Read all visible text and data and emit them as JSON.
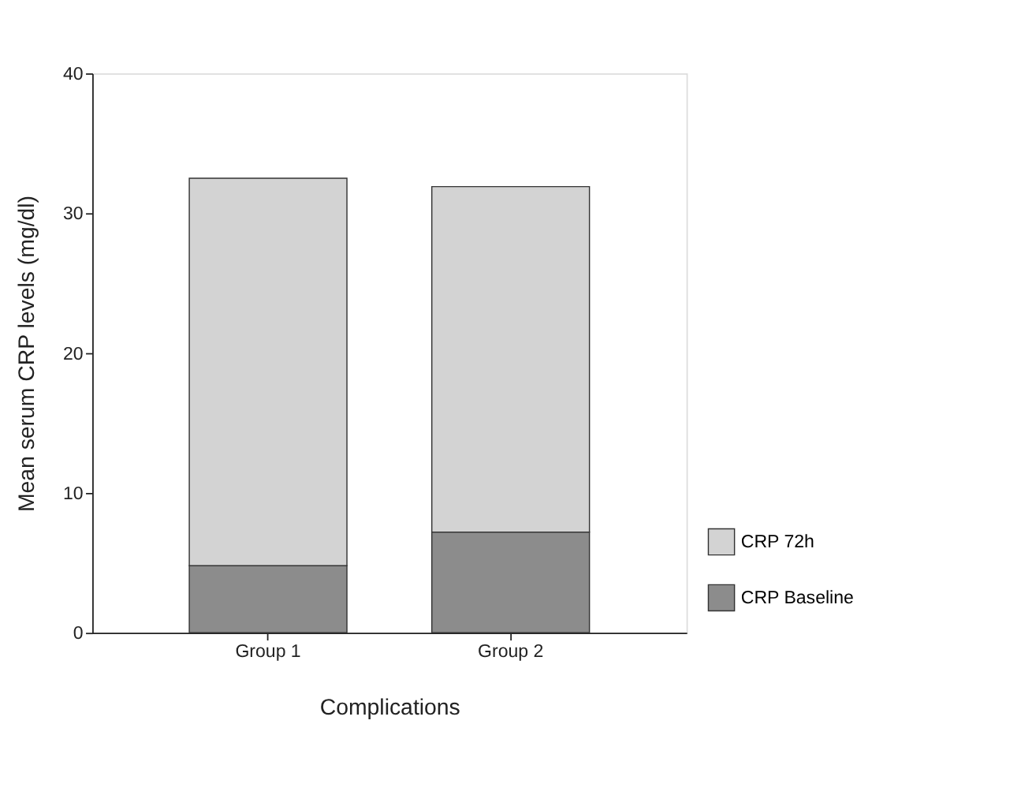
{
  "chart_data": {
    "type": "bar",
    "stacked": true,
    "xlabel": "Complications",
    "ylabel": "Mean serum CRP levels (mg/dl)",
    "categories": [
      "Group 1",
      "Group 2"
    ],
    "series": [
      {
        "name": "CRP Baseline",
        "color": "#8c8c8c",
        "values": [
          4.8,
          7.2
        ]
      },
      {
        "name": "CRP 72h",
        "color": "#d3d3d3",
        "values": [
          27.7,
          24.7
        ]
      }
    ],
    "ylim": [
      0,
      40
    ],
    "yticks": [
      0,
      10,
      20,
      30,
      40
    ],
    "grid": false,
    "legend": "bottom right"
  }
}
